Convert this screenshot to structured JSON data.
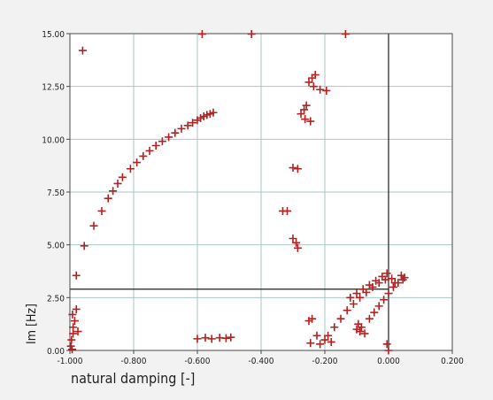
{
  "chart_data": {
    "type": "scatter",
    "title": "",
    "xlabel": "natural damping [-]",
    "ylabel": "Im [Hz]",
    "xlim": [
      -1.0,
      0.2
    ],
    "ylim": [
      0.0,
      15.0
    ],
    "grid": true,
    "marker": "plus",
    "x_ticks": [
      "-1.000",
      "-0.800",
      "-0.600",
      "-0.400",
      "-0.200",
      "0.000",
      "0.200"
    ],
    "y_ticks": [
      "0.00",
      "2.50",
      "5.00",
      "7.50",
      "10.00",
      "12.50",
      "15.00"
    ],
    "reference_lines": [
      {
        "orientation": "vertical",
        "x": 0.0
      },
      {
        "orientation": "horizontal",
        "y": 2.9,
        "x_from": -1.0,
        "x_to": 0.0
      }
    ],
    "series": [
      {
        "points": [
          [
            -0.98,
            3.55
          ],
          [
            -0.955,
            4.95
          ],
          [
            -0.925,
            5.9
          ],
          [
            -0.9,
            6.6
          ],
          [
            -0.88,
            7.2
          ],
          [
            -0.865,
            7.55
          ],
          [
            -0.85,
            7.9
          ],
          [
            -0.835,
            8.2
          ],
          [
            -0.81,
            8.6
          ],
          [
            -0.79,
            8.9
          ],
          [
            -0.77,
            9.2
          ],
          [
            -0.75,
            9.45
          ],
          [
            -0.73,
            9.7
          ],
          [
            -0.71,
            9.9
          ],
          [
            -0.69,
            10.1
          ],
          [
            -0.67,
            10.3
          ],
          [
            -0.65,
            10.5
          ],
          [
            -0.63,
            10.65
          ],
          [
            -0.615,
            10.78
          ],
          [
            -0.6,
            10.9
          ],
          [
            -0.59,
            11.0
          ],
          [
            -0.58,
            11.08
          ],
          [
            -0.57,
            11.15
          ],
          [
            -0.56,
            11.2
          ],
          [
            -0.55,
            11.26
          ],
          [
            -0.96,
            14.2
          ],
          [
            -0.585,
            14.98
          ],
          [
            -0.43,
            14.98
          ],
          [
            -0.135,
            14.98
          ],
          [
            -0.997,
            0.2
          ],
          [
            -0.995,
            0.5
          ],
          [
            -0.99,
            0.8
          ],
          [
            -0.99,
            1.1
          ],
          [
            -0.985,
            1.4
          ],
          [
            -0.992,
            1.7
          ],
          [
            -0.98,
            1.95
          ],
          [
            -0.975,
            0.9
          ],
          [
            -0.993,
            0.05
          ],
          [
            -0.6,
            0.55
          ],
          [
            -0.575,
            0.6
          ],
          [
            -0.555,
            0.55
          ],
          [
            -0.53,
            0.6
          ],
          [
            -0.51,
            0.58
          ],
          [
            -0.495,
            0.62
          ],
          [
            -0.25,
            12.7
          ],
          [
            -0.24,
            12.9
          ],
          [
            -0.23,
            13.05
          ],
          [
            -0.235,
            12.5
          ],
          [
            -0.215,
            12.35
          ],
          [
            -0.195,
            12.3
          ],
          [
            -0.275,
            11.2
          ],
          [
            -0.265,
            11.4
          ],
          [
            -0.258,
            11.6
          ],
          [
            -0.262,
            10.95
          ],
          [
            -0.245,
            10.85
          ],
          [
            -0.3,
            8.65
          ],
          [
            -0.285,
            8.6
          ],
          [
            -0.332,
            6.6
          ],
          [
            -0.318,
            6.6
          ],
          [
            -0.3,
            5.3
          ],
          [
            -0.29,
            5.1
          ],
          [
            -0.285,
            4.85
          ],
          [
            -0.25,
            1.4
          ],
          [
            -0.24,
            1.5
          ],
          [
            -0.2,
            0.5
          ],
          [
            -0.18,
            0.4
          ],
          [
            -0.225,
            0.7
          ],
          [
            -0.245,
            0.35
          ],
          [
            -0.215,
            0.3
          ],
          [
            -0.1,
            1.0
          ],
          [
            -0.09,
            0.9
          ],
          [
            -0.085,
            1.1
          ],
          [
            -0.075,
            0.8
          ],
          [
            -0.095,
            1.25
          ],
          [
            -0.19,
            0.7
          ],
          [
            -0.17,
            1.1
          ],
          [
            -0.15,
            1.5
          ],
          [
            -0.13,
            1.9
          ],
          [
            -0.11,
            2.2
          ],
          [
            -0.09,
            2.5
          ],
          [
            -0.07,
            2.75
          ],
          [
            -0.05,
            3.0
          ],
          [
            -0.03,
            3.2
          ],
          [
            -0.01,
            3.35
          ],
          [
            0.01,
            3.4
          ],
          [
            -0.12,
            2.5
          ],
          [
            -0.1,
            2.7
          ],
          [
            -0.08,
            2.9
          ],
          [
            -0.06,
            3.1
          ],
          [
            -0.04,
            3.3
          ],
          [
            -0.02,
            3.5
          ],
          [
            -0.005,
            3.65
          ],
          [
            -0.06,
            1.5
          ],
          [
            -0.045,
            1.8
          ],
          [
            -0.03,
            2.1
          ],
          [
            -0.015,
            2.4
          ],
          [
            0.0,
            2.7
          ],
          [
            0.015,
            3.0
          ],
          [
            0.03,
            3.2
          ],
          [
            0.045,
            3.35
          ],
          [
            0.05,
            3.45
          ],
          [
            0.04,
            3.55
          ],
          [
            0.02,
            3.2
          ],
          [
            0.0,
            0.0
          ],
          [
            -0.005,
            0.3
          ]
        ]
      }
    ]
  }
}
